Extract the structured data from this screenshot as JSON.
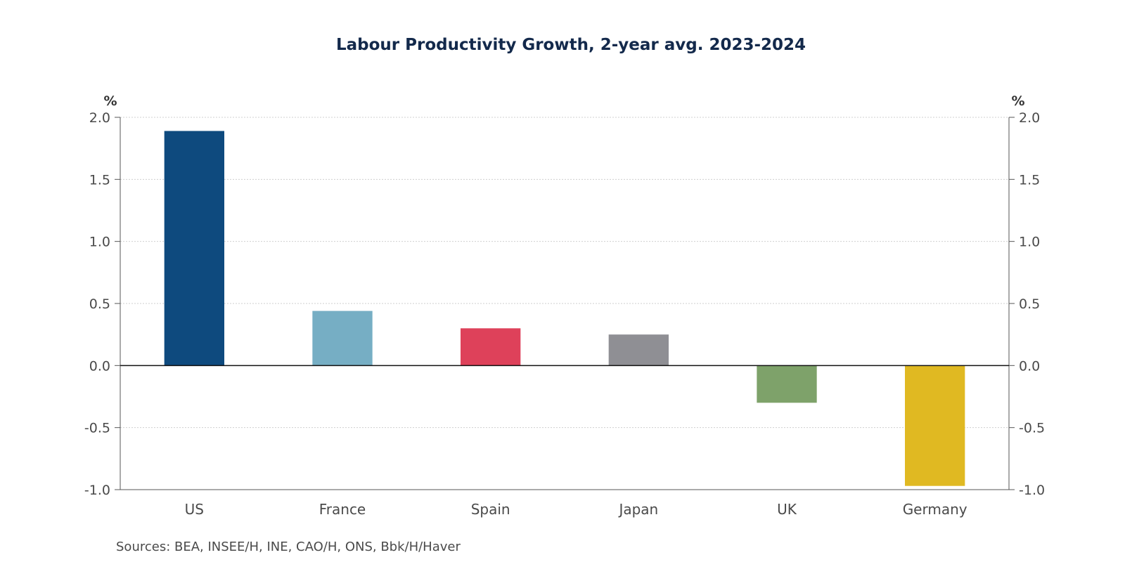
{
  "chart_data": {
    "type": "bar",
    "title": "Labour Productivity Growth, 2-year avg. 2023-2024",
    "xlabel": "",
    "ylabel": "%",
    "ylabel_right": "%",
    "categories": [
      "US",
      "France",
      "Spain",
      "Japan",
      "UK",
      "Germany"
    ],
    "values": [
      1.89,
      0.44,
      0.3,
      0.25,
      -0.3,
      -0.97
    ],
    "colors": [
      "#0e4a7e",
      "#76aec4",
      "#de415a",
      "#8f8f94",
      "#7ea26a",
      "#e0b922"
    ],
    "ylim": [
      -1.0,
      2.0
    ],
    "yticks": [
      2.0,
      1.5,
      1.0,
      0.5,
      0.0,
      -0.5,
      -1.0
    ],
    "ytick_labels": [
      "2.0",
      "1.5",
      "1.0",
      "0.5",
      "0.0",
      "-0.5",
      "-1.0"
    ],
    "grid": true,
    "dual_axis": true,
    "legend": "none",
    "source": "Sources:  BEA, INSEE/H, INE, CAO/H, ONS, Bbk/H/Haver"
  }
}
